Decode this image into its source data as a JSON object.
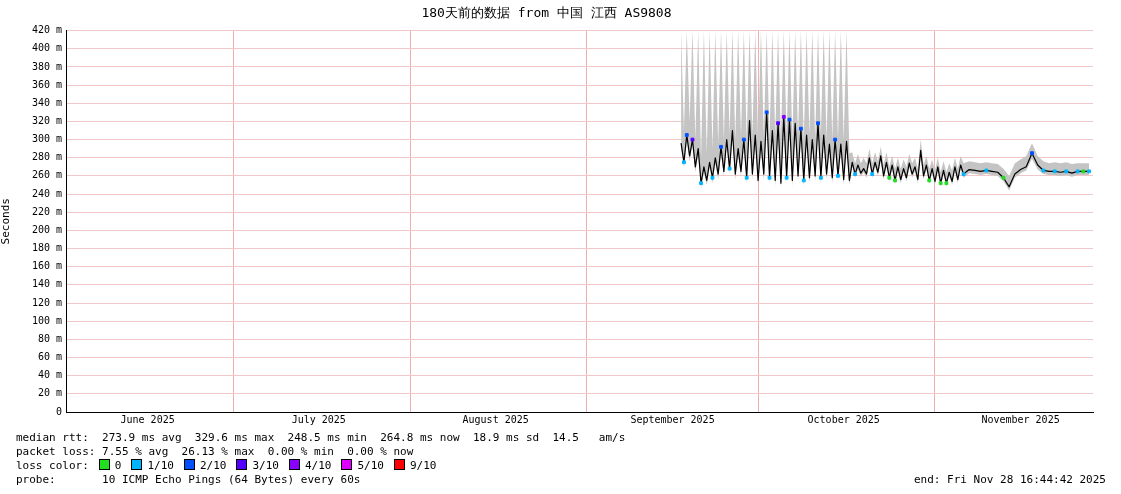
{
  "chart_data": {
    "type": "line",
    "title": "180天前的数据 from 中国 江西 AS9808",
    "ylabel": "Seconds",
    "xlim": [
      "2025-06-01T16:44",
      "2025-11-28T16:44"
    ],
    "xticks": [
      {
        "value": "2025-06-16",
        "label": "June 2025"
      },
      {
        "value": "2025-07-01",
        "label": null
      },
      {
        "value": "2025-07-16",
        "label": "July 2025"
      },
      {
        "value": "2025-08-01",
        "label": null
      },
      {
        "value": "2025-08-16",
        "label": "August 2025"
      },
      {
        "value": "2025-09-01",
        "label": null
      },
      {
        "value": "2025-09-16",
        "label": "September 2025"
      },
      {
        "value": "2025-10-01",
        "label": null
      },
      {
        "value": "2025-10-16",
        "label": "October 2025"
      },
      {
        "value": "2025-11-01",
        "label": null
      },
      {
        "value": "2025-11-16",
        "label": "November 2025"
      }
    ],
    "ylim": [
      0,
      420
    ],
    "yticks": [
      0,
      {
        "value": 20,
        "label": "20 m"
      },
      {
        "value": 40,
        "label": "40 m"
      },
      {
        "value": 60,
        "label": "60 m"
      },
      {
        "value": 80,
        "label": "80 m"
      },
      {
        "value": 100,
        "label": "100 m"
      },
      {
        "value": 120,
        "label": "120 m"
      },
      {
        "value": 140,
        "label": "140 m"
      },
      {
        "value": 160,
        "label": "160 m"
      },
      {
        "value": 180,
        "label": "180 m"
      },
      {
        "value": 200,
        "label": "200 m"
      },
      {
        "value": 220,
        "label": "220 m"
      },
      {
        "value": 240,
        "label": "240 m"
      },
      {
        "value": 260,
        "label": "260 m"
      },
      {
        "value": 280,
        "label": "280 m"
      },
      {
        "value": 300,
        "label": "300 m"
      },
      {
        "value": 320,
        "label": "320 m"
      },
      {
        "value": 340,
        "label": "340 m"
      },
      {
        "value": 360,
        "label": "360 m"
      },
      {
        "value": 380,
        "label": "380 m"
      },
      {
        "value": 400,
        "label": "400 m"
      },
      {
        "value": 420,
        "label": "420 m"
      }
    ],
    "grid": true,
    "legend": "bottom left",
    "legend_title": "loss color:",
    "annotations": [
      "median rtt:  273.9 ms avg  329.6 ms max  248.5 ms min  264.8 ms now  18.9 ms sd  14.5   am/s",
      "packet loss: 7.55 % avg  26.13 % max  0.00 % min  0.00 % now",
      "probe:       10 ICMP Echo Pings (64 Bytes) every 60s",
      "end: Fri Nov 28 16:44:42 2025"
    ],
    "series": [
      {
        "color": "#000000",
        "x": [
          "2025-09-17T12:00",
          "2025-09-18T00:00",
          "2025-09-18T12:00",
          "2025-09-19T00:00",
          "2025-09-19T12:00",
          "2025-09-20T00:00",
          "2025-09-20T12:00",
          "2025-09-21T00:00",
          "2025-09-21T12:00",
          "2025-09-22T00:00",
          "2025-09-22T12:00",
          "2025-09-23T00:00",
          "2025-09-23T12:00",
          "2025-09-24T00:00",
          "2025-09-24T12:00",
          "2025-09-25T00:00",
          "2025-09-25T12:00",
          "2025-09-26T00:00",
          "2025-09-26T12:00",
          "2025-09-27T00:00",
          "2025-09-27T12:00",
          "2025-09-28T00:00",
          "2025-09-28T12:00",
          "2025-09-29T00:00",
          "2025-09-29T12:00",
          "2025-09-30T00:00",
          "2025-09-30T12:00",
          "2025-10-01T00:00",
          "2025-10-01T12:00",
          "2025-10-02T00:00",
          "2025-10-02T12:00",
          "2025-10-03T00:00",
          "2025-10-03T12:00",
          "2025-10-04T00:00",
          "2025-10-04T12:00",
          "2025-10-05T00:00",
          "2025-10-05T12:00",
          "2025-10-06T00:00",
          "2025-10-06T12:00",
          "2025-10-07T00:00",
          "2025-10-07T12:00",
          "2025-10-08T00:00",
          "2025-10-08T12:00",
          "2025-10-09T00:00",
          "2025-10-09T12:00",
          "2025-10-10T00:00",
          "2025-10-10T12:00",
          "2025-10-11T00:00",
          "2025-10-11T12:00",
          "2025-10-12T00:00",
          "2025-10-12T12:00",
          "2025-10-13T00:00",
          "2025-10-13T12:00",
          "2025-10-14T00:00",
          "2025-10-14T12:00",
          "2025-10-15T00:00",
          "2025-10-15T12:00",
          "2025-10-16T00:00",
          "2025-10-16T12:00",
          "2025-10-17T00:00",
          "2025-10-17T12:00",
          "2025-10-18T00:00",
          "2025-10-18T12:00",
          "2025-10-19T00:00",
          "2025-10-19T12:00",
          "2025-10-20T00:00",
          "2025-10-20T12:00",
          "2025-10-21T00:00",
          "2025-10-21T12:00",
          "2025-10-22T00:00",
          "2025-10-22T12:00",
          "2025-10-23T00:00",
          "2025-10-23T12:00",
          "2025-10-24T00:00",
          "2025-10-24T12:00",
          "2025-10-25T00:00",
          "2025-10-25T12:00",
          "2025-10-26T00:00",
          "2025-10-26T12:00",
          "2025-10-27T00:00",
          "2025-10-27T12:00",
          "2025-10-28T00:00",
          "2025-10-28T12:00",
          "2025-10-29T00:00",
          "2025-10-29T12:00",
          "2025-10-30T00:00",
          "2025-10-30T12:00",
          "2025-10-31T00:00",
          "2025-10-31T12:00",
          "2025-11-01T00:00",
          "2025-11-01T12:00",
          "2025-11-02T00:00",
          "2025-11-02T12:00",
          "2025-11-03T00:00",
          "2025-11-03T12:00",
          "2025-11-04T00:00",
          "2025-11-04T12:00",
          "2025-11-05T00:00",
          "2025-11-05T12:00",
          "2025-11-06T00:00",
          "2025-11-07T00:00",
          "2025-11-08T00:00",
          "2025-11-09T00:00",
          "2025-11-10T00:00",
          "2025-11-11T00:00",
          "2025-11-12T00:00",
          "2025-11-13T00:00",
          "2025-11-14T00:00",
          "2025-11-15T00:00",
          "2025-11-16T00:00",
          "2025-11-17T00:00",
          "2025-11-18T00:00",
          "2025-11-19T00:00",
          "2025-11-20T00:00",
          "2025-11-21T00:00",
          "2025-11-22T00:00",
          "2025-11-23T00:00",
          "2025-11-24T00:00",
          "2025-11-25T00:00",
          "2025-11-26T00:00",
          "2025-11-27T00:00",
          "2025-11-28T00:00"
        ],
        "values": [
          296,
          275,
          305,
          282,
          300,
          270,
          290,
          252,
          270,
          255,
          275,
          258,
          280,
          262,
          292,
          265,
          300,
          268,
          310,
          262,
          290,
          265,
          300,
          258,
          321,
          262,
          305,
          255,
          298,
          262,
          330,
          258,
          310,
          255,
          318,
          252,
          325,
          258,
          322,
          255,
          318,
          260,
          312,
          255,
          305,
          258,
          300,
          260,
          318,
          258,
          305,
          262,
          295,
          258,
          300,
          260,
          295,
          256,
          298,
          255,
          275,
          262,
          272,
          263,
          268,
          262,
          280,
          262,
          275,
          264,
          282,
          260,
          275,
          258,
          272,
          255,
          270,
          256,
          268,
          258,
          274,
          262,
          270,
          256,
          288,
          260,
          272,
          255,
          268,
          254,
          270,
          252,
          266,
          252,
          264,
          254,
          270,
          256,
          272,
          262,
          267,
          266,
          265,
          266,
          265,
          264,
          258,
          248,
          262,
          267,
          270,
          285,
          272,
          266,
          265,
          265,
          264,
          265,
          263,
          265,
          265,
          265
        ],
        "lower": [
          290,
          270,
          298,
          276,
          294,
          264,
          284,
          247,
          264,
          250,
          269,
          252,
          274,
          256,
          286,
          259,
          294,
          262,
          303,
          256,
          284,
          259,
          293,
          252,
          313,
          256,
          298,
          249,
          291,
          256,
          322,
          252,
          303,
          249,
          310,
          247,
          317,
          252,
          314,
          249,
          310,
          254,
          305,
          249,
          298,
          252,
          293,
          254,
          310,
          252,
          298,
          256,
          289,
          252,
          293,
          254,
          289,
          250,
          291,
          250,
          270,
          258,
          267,
          259,
          264,
          258,
          275,
          258,
          270,
          260,
          277,
          256,
          270,
          254,
          267,
          251,
          265,
          252,
          264,
          254,
          269,
          258,
          265,
          252,
          282,
          256,
          267,
          251,
          264,
          250,
          265,
          248,
          262,
          248,
          260,
          250,
          265,
          252,
          267,
          258,
          263,
          262,
          261,
          262,
          261,
          260,
          254,
          244,
          258,
          263,
          266,
          279,
          267,
          262,
          261,
          261,
          260,
          261,
          259,
          261,
          261,
          261
        ],
        "upper": [
          420,
          310,
          420,
          320,
          420,
          300,
          420,
          280,
          420,
          285,
          420,
          290,
          420,
          295,
          420,
          300,
          420,
          305,
          420,
          300,
          420,
          305,
          420,
          300,
          420,
          305,
          420,
          300,
          420,
          305,
          420,
          300,
          420,
          305,
          420,
          300,
          420,
          305,
          420,
          300,
          420,
          305,
          420,
          300,
          420,
          305,
          420,
          300,
          420,
          305,
          420,
          300,
          420,
          300,
          420,
          300,
          420,
          300,
          420,
          285,
          286,
          274,
          284,
          274,
          280,
          274,
          290,
          274,
          286,
          276,
          292,
          272,
          286,
          270,
          282,
          268,
          280,
          268,
          278,
          270,
          284,
          274,
          280,
          268,
          300,
          272,
          282,
          268,
          278,
          266,
          280,
          264,
          276,
          264,
          274,
          266,
          280,
          268,
          282,
          274,
          276,
          275,
          274,
          275,
          274,
          273,
          268,
          260,
          274,
          278,
          282,
          296,
          282,
          276,
          274,
          275,
          274,
          275,
          273,
          274,
          274,
          274
        ]
      },
      {
        "type": "scatter",
        "name": "0",
        "color": "#22dd22",
        "marker": "square",
        "x": [
          "2025-10-24T00:00",
          "2025-10-25T00:00",
          "2025-10-31T00:00",
          "2025-11-02T00:00",
          "2025-11-03T00:00",
          "2025-11-13T00:00",
          "2025-11-27T00:00"
        ],
        "values": [
          258,
          255,
          255,
          252,
          252,
          258,
          265
        ]
      },
      {
        "type": "scatter",
        "name": "1/10",
        "color": "#00b4ff",
        "marker": "square",
        "x": [
          "2025-09-18T00:00",
          "2025-09-21T00:00",
          "2025-09-23T00:00",
          "2025-09-26T00:00",
          "2025-09-29T00:00",
          "2025-10-03T00:00",
          "2025-10-06T00:00",
          "2025-10-09T00:00",
          "2025-10-12T00:00",
          "2025-10-15T00:00",
          "2025-10-18T00:00",
          "2025-10-21T00:00",
          "2025-11-06T00:00",
          "2025-11-10T00:00",
          "2025-11-20T00:00",
          "2025-11-22T00:00",
          "2025-11-24T00:00",
          "2025-11-26T00:00",
          "2025-11-28T00:00"
        ],
        "values": [
          275,
          252,
          258,
          268,
          258,
          258,
          258,
          255,
          258,
          260,
          262,
          262,
          262,
          266,
          266,
          265,
          265,
          265,
          265
        ]
      },
      {
        "type": "scatter",
        "name": "2/10",
        "color": "#0050ff",
        "marker": "square",
        "x": [
          "2025-09-18T12:00",
          "2025-09-24T12:00",
          "2025-09-28T12:00",
          "2025-10-02T12:00",
          "2025-10-06T12:00",
          "2025-10-08T12:00",
          "2025-10-11T12:00",
          "2025-10-14T12:00",
          "2025-11-18T00:00"
        ],
        "values": [
          305,
          292,
          300,
          330,
          322,
          312,
          318,
          300,
          285
        ]
      },
      {
        "type": "scatter",
        "name": "3/10",
        "color": "#5500ff",
        "marker": "square",
        "x": [
          "2025-09-19T12:00",
          "2025-10-04T12:00"
        ],
        "values": [
          300,
          318
        ]
      },
      {
        "type": "scatter",
        "name": "4/10",
        "color": "#8800ff",
        "marker": "square",
        "x": [
          "2025-10-05T12:00"
        ],
        "values": [
          325
        ]
      },
      {
        "type": "scatter",
        "name": "5/10",
        "color": "#dd00ff"
      },
      {
        "type": "scatter",
        "name": "9/10",
        "color": "#ff0000"
      }
    ]
  }
}
